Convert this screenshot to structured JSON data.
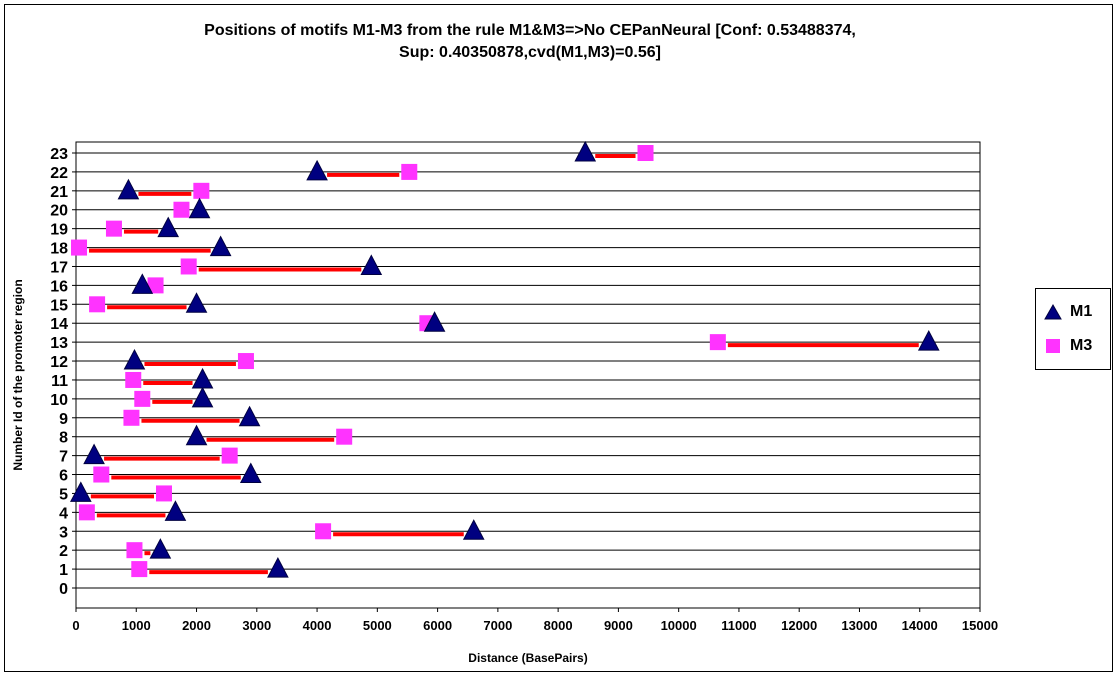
{
  "chart_data": {
    "type": "scatter",
    "title_line1": "Positions of motifs M1-M3 from the rule M1&M3=>No CEPanNeural [Conf: 0.53488374,",
    "title_line2": "Sup: 0.40350878,cvd(M1,M3)=0.56]",
    "xlabel": "Distance (BasePairs)",
    "ylabel": "Number Id of the promoter region",
    "xlim": [
      0,
      15000
    ],
    "ylim": [
      0,
      23
    ],
    "xticks": [
      0,
      1000,
      2000,
      3000,
      4000,
      5000,
      6000,
      7000,
      8000,
      9000,
      10000,
      11000,
      12000,
      13000,
      14000,
      15000
    ],
    "yticks": [
      0,
      1,
      2,
      3,
      4,
      5,
      6,
      7,
      8,
      9,
      10,
      11,
      12,
      13,
      14,
      15,
      16,
      17,
      18,
      19,
      20,
      21,
      22,
      23
    ],
    "grid": "horizontal",
    "legend_position": "right",
    "series": [
      {
        "name": "M1",
        "marker": "triangle",
        "color": "#000080",
        "points": [
          [
            3350,
            1
          ],
          [
            1400,
            2
          ],
          [
            6600,
            3
          ],
          [
            1650,
            4
          ],
          [
            80,
            5
          ],
          [
            2900,
            6
          ],
          [
            300,
            7
          ],
          [
            2000,
            8
          ],
          [
            2880,
            9
          ],
          [
            2100,
            10
          ],
          [
            2100,
            11
          ],
          [
            970,
            12
          ],
          [
            14150,
            13
          ],
          [
            5950,
            14
          ],
          [
            2000,
            15
          ],
          [
            1100,
            16
          ],
          [
            4900,
            17
          ],
          [
            2400,
            18
          ],
          [
            1530,
            19
          ],
          [
            2050,
            20
          ],
          [
            870,
            21
          ],
          [
            4000,
            22
          ],
          [
            8450,
            23
          ]
        ]
      },
      {
        "name": "M3",
        "marker": "square",
        "color": "#FF33FF",
        "points": [
          [
            1050,
            1
          ],
          [
            970,
            2
          ],
          [
            4100,
            3
          ],
          [
            180,
            4
          ],
          [
            1460,
            5
          ],
          [
            420,
            6
          ],
          [
            2550,
            7
          ],
          [
            4450,
            8
          ],
          [
            920,
            9
          ],
          [
            1100,
            10
          ],
          [
            950,
            11
          ],
          [
            2820,
            12
          ],
          [
            10650,
            13
          ],
          [
            5830,
            14
          ],
          [
            350,
            15
          ],
          [
            1320,
            16
          ],
          [
            1870,
            17
          ],
          [
            50,
            18
          ],
          [
            630,
            19
          ],
          [
            1750,
            20
          ],
          [
            2080,
            21
          ],
          [
            5530,
            22
          ],
          [
            9450,
            23
          ]
        ]
      }
    ],
    "connector_color": "#FF0000"
  }
}
